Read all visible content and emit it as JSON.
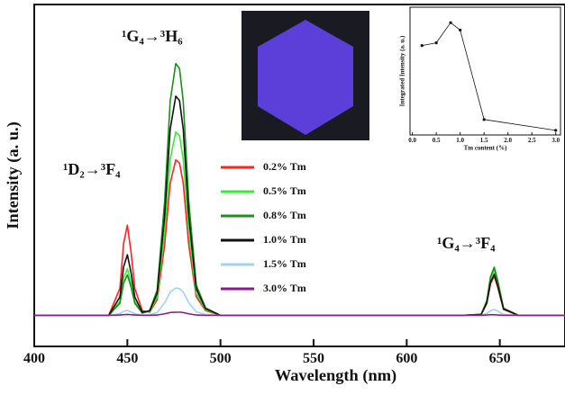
{
  "chart_data": [
    {
      "type": "line",
      "xlabel": "Wavelength (nm)",
      "ylabel": "Intensity (a. u.)",
      "annotations": [
        "¹D₂→³F₄",
        "¹G₄→³H₆",
        "¹G₄→³F₄"
      ],
      "x": [
        400,
        440,
        446,
        448,
        450,
        452,
        454,
        458,
        462,
        466,
        470,
        473,
        476,
        478,
        480,
        483,
        487,
        492,
        500,
        540,
        630,
        640,
        643,
        645,
        647,
        649,
        652,
        660,
        685
      ],
      "xlim": [
        400,
        685
      ],
      "xticks": [
        400,
        450,
        500,
        550,
        600,
        650
      ],
      "ylim": [
        -10,
        100
      ],
      "legend": "center",
      "series": [
        {
          "name": "0.2% Tm",
          "color": "#ff2222",
          "values": [
            0,
            0,
            8.7,
            23.2,
            29,
            20.3,
            8.7,
            1.5,
            1,
            5,
            22.5,
            42.5,
            50,
            49,
            42.5,
            22.5,
            6,
            1.5,
            0,
            0,
            0,
            0.3,
            3.8,
            10.1,
            12.6,
            8.8,
            1.9,
            0,
            0
          ]
        },
        {
          "name": "0.5% Tm",
          "color": "#33ee33",
          "values": [
            0,
            0,
            4.5,
            12,
            15,
            10.5,
            4.5,
            0.8,
            1.2,
            5.9,
            26.6,
            50.2,
            59,
            57.8,
            50.2,
            26.6,
            7.1,
            1.8,
            0,
            0,
            0,
            0.3,
            4.4,
            11.7,
            14.6,
            10.2,
            2.2,
            0,
            0
          ]
        },
        {
          "name": "0.8% Tm",
          "color": "#1a8f1a",
          "values": [
            0,
            0,
            3.9,
            10.4,
            13,
            9.1,
            3.9,
            0.7,
            1.6,
            8.1,
            36.5,
            68.9,
            81,
            79.4,
            68.9,
            36.5,
            9.7,
            2.4,
            0,
            0,
            0,
            0.3,
            4.7,
            12.4,
            15.5,
            10.9,
            2.3,
            0,
            0
          ]
        },
        {
          "name": "1.0% Tm",
          "color": "#111111",
          "values": [
            0,
            0,
            5.9,
            15.6,
            19.5,
            13.7,
            5.9,
            1,
            1.4,
            7.1,
            31.7,
            59.9,
            70.5,
            69.1,
            59.9,
            31.7,
            8.5,
            2.1,
            0,
            0,
            0,
            0.3,
            4,
            10.6,
            13.2,
            9.2,
            2,
            0,
            0
          ]
        },
        {
          "name": "1.5% Tm",
          "color": "#9fd4f0",
          "values": [
            0,
            0,
            0.5,
            1.3,
            1.6,
            1.1,
            0.5,
            0.1,
            0.2,
            0.9,
            4,
            7.5,
            8.8,
            8.6,
            7.5,
            4,
            1.1,
            0.3,
            0,
            0,
            0,
            0,
            0.6,
            1.5,
            1.9,
            1.3,
            0.3,
            0,
            0
          ]
        },
        {
          "name": "3.0% Tm",
          "color": "#8b1a8b",
          "values": [
            0,
            0,
            0.1,
            0.2,
            0.3,
            0.2,
            0.1,
            0,
            0,
            0.1,
            0.5,
            0.9,
            1,
            1,
            0.9,
            0.5,
            0.1,
            0,
            0,
            0,
            0,
            0,
            0.1,
            0.2,
            0.2,
            0.1,
            0,
            0,
            0
          ]
        }
      ]
    },
    {
      "type": "line",
      "xlabel": "Tm content (%)",
      "ylabel": "Integrated Intensity (a. u.)",
      "x": [
        0.2,
        0.5,
        0.8,
        1.0,
        1.5,
        3.0
      ],
      "values": [
        70,
        72.1,
        87.9,
        82.1,
        12.1,
        3.6
      ],
      "color": "#111111",
      "xlim": [
        -0.05,
        3.1
      ],
      "ylim": [
        0,
        100
      ],
      "xticks": [
        {
          "value": 0,
          "label": "0.0"
        },
        {
          "value": 0.5,
          "label": "0.5"
        },
        {
          "value": 1,
          "label": "1.0"
        },
        {
          "value": 1.5,
          "label": "1.5"
        },
        {
          "value": 2,
          "label": "2.0"
        },
        {
          "value": 2.5,
          "label": "2.5"
        },
        {
          "value": 3,
          "label": "3.0"
        }
      ]
    }
  ]
}
